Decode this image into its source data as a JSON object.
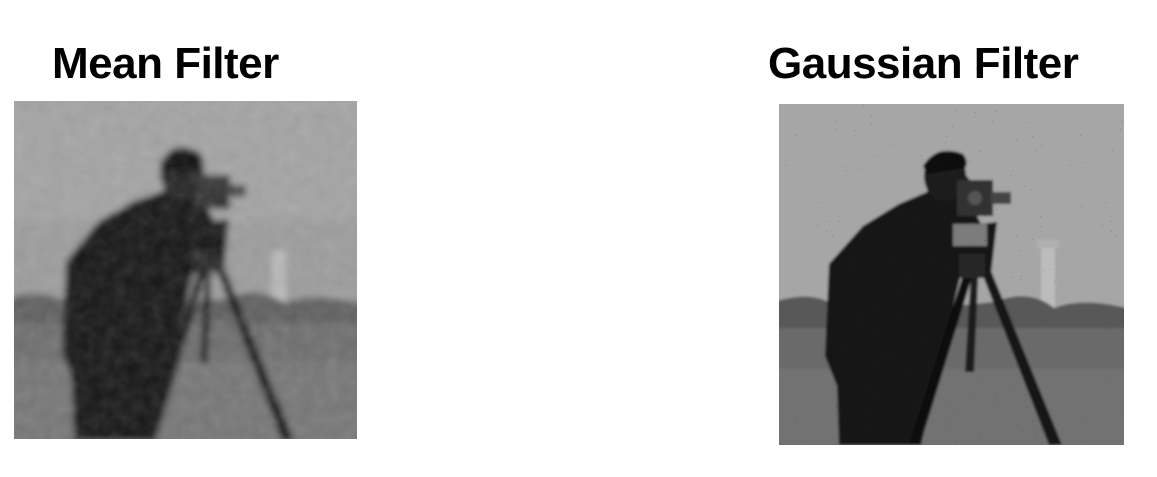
{
  "panels": [
    {
      "title": "Mean Filter"
    },
    {
      "title": "Gaussian Filter"
    }
  ],
  "colors": {
    "background": "#ffffff",
    "title": "#000000",
    "sky": "#9e9e9e",
    "ground": "#6a6a6a",
    "figure": "#161616"
  }
}
